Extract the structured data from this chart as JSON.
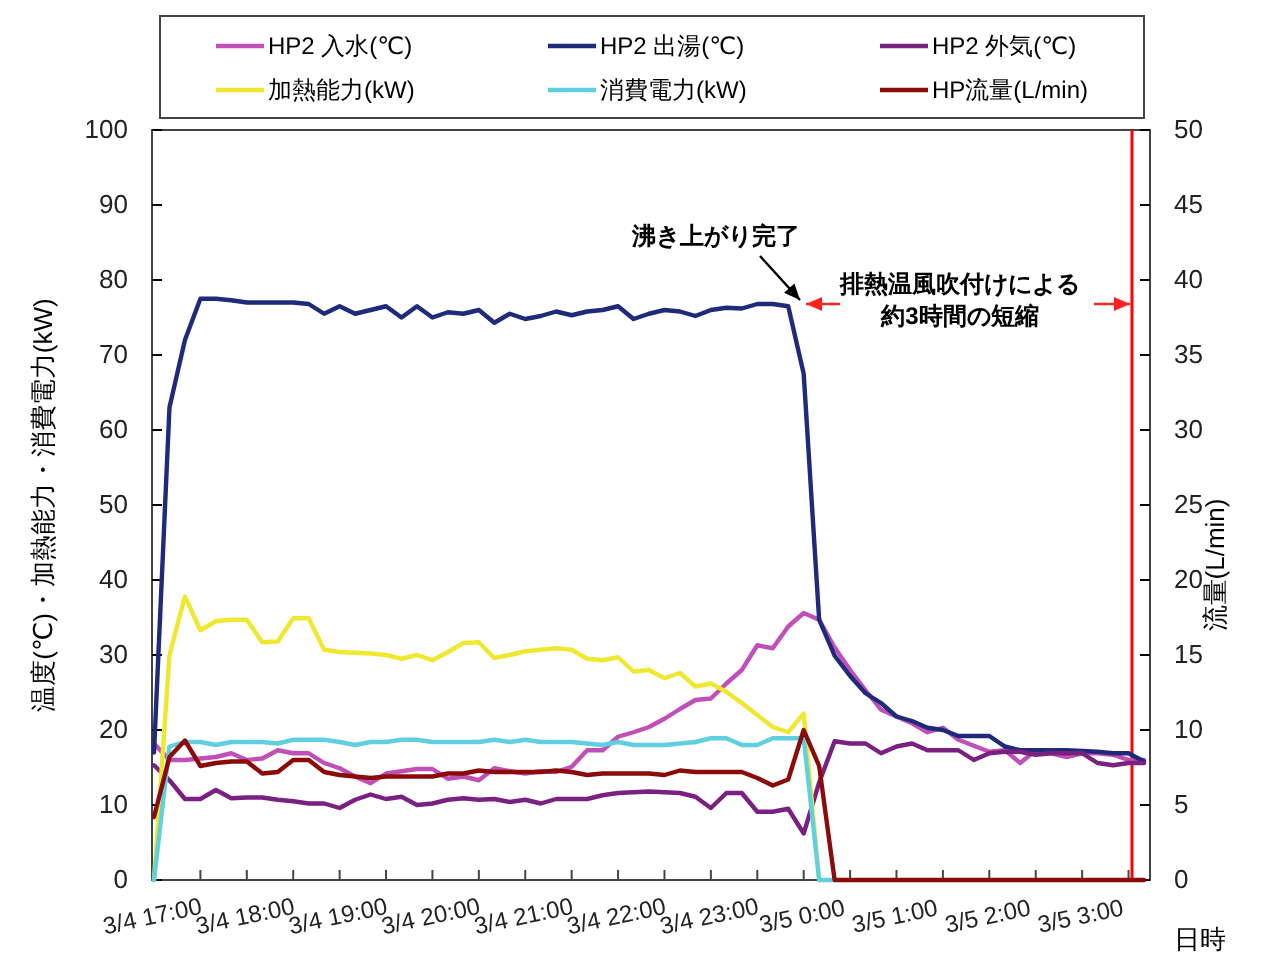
{
  "chart_data": {
    "type": "line",
    "categories": [
      "3/4 17:00",
      null,
      null,
      null,
      null,
      null,
      "3/4 18:00",
      null,
      null,
      null,
      null,
      null,
      "3/4 19:00",
      null,
      null,
      null,
      null,
      null,
      "3/4 20:00",
      null,
      null,
      null,
      null,
      null,
      "3/4 21:00",
      null,
      null,
      null,
      null,
      null,
      "3/4 22:00",
      null,
      null,
      null,
      null,
      null,
      "3/4 23:00",
      null,
      null,
      null,
      null,
      null,
      "3/5 0:00",
      null,
      null,
      null,
      null,
      null,
      "3/5 1:00",
      null,
      null,
      null,
      null,
      null,
      "3/5 2:00",
      null,
      null,
      null,
      null,
      null,
      "3/5 3:00",
      null,
      null,
      null,
      null
    ],
    "series": [
      {
        "name": "HP2 入水(℃)",
        "color": "#c050b8",
        "values": [
          18.2,
          16,
          16,
          16.2,
          16.4,
          16.9,
          16,
          16.2,
          17.3,
          16.9,
          16.9,
          15.6,
          14.9,
          13.8,
          12.9,
          14.2,
          14.5,
          14.8,
          14.8,
          13.5,
          13.8,
          13.3,
          14.9,
          14.5,
          14.2,
          14.5,
          14.4,
          15.1,
          17.3,
          17.3,
          19.1,
          19.7,
          20.4,
          21.5,
          22.8,
          24,
          24.2,
          26.2,
          28,
          31.3,
          30.9,
          33.8,
          35.6,
          34.7,
          31,
          28,
          25.3,
          22.7,
          21.8,
          20.9,
          19.7,
          20.3,
          18.7,
          17.9,
          17.1,
          17.3,
          15.6,
          17.3,
          16.9,
          16.4,
          16.9,
          16.9,
          16.7,
          16,
          16
        ]
      },
      {
        "name": "HP2 出湯(℃)",
        "color": "#1f2a7a",
        "values": [
          17,
          63,
          72,
          77.5,
          77.5,
          77.3,
          77,
          77,
          77,
          77,
          76.8,
          75.5,
          76.5,
          75.5,
          76,
          76.5,
          75,
          76.5,
          75,
          75.7,
          75.5,
          76,
          74.3,
          75.5,
          74.8,
          75.2,
          75.8,
          75.3,
          75.8,
          76,
          76.5,
          74.8,
          75.5,
          76,
          75.8,
          75.2,
          76,
          76.3,
          76.2,
          76.8,
          76.8,
          76.5,
          67.5,
          34.7,
          29.9,
          27.2,
          24.9,
          23.6,
          21.8,
          21.2,
          20.3,
          20,
          19.2,
          19.2,
          19.2,
          17.8,
          17.3,
          17.3,
          17.3,
          17.3,
          17.2,
          17.1,
          16.9,
          16.9,
          15.8
        ]
      },
      {
        "name": "HP2 外気(℃)",
        "color": "#7a2080",
        "values": [
          15.3,
          13.3,
          10.8,
          10.8,
          12,
          10.9,
          11,
          11,
          10.7,
          10.5,
          10.2,
          10.2,
          9.6,
          10.7,
          11.4,
          10.8,
          11.1,
          10,
          10.2,
          10.7,
          10.9,
          10.7,
          10.8,
          10.4,
          10.7,
          10.2,
          10.8,
          10.8,
          10.8,
          11.3,
          11.6,
          11.7,
          11.8,
          11.7,
          11.6,
          11.1,
          9.6,
          11.6,
          11.6,
          9.1,
          9.1,
          9.5,
          6.2,
          13,
          18.5,
          18.2,
          18.2,
          16.9,
          17.8,
          18.2,
          17.3,
          17.3,
          17.3,
          16,
          16.9,
          17.1,
          17.1,
          16.7,
          16.9,
          16.9,
          16.9,
          15.6,
          15.3,
          15.6,
          15.6
        ]
      },
      {
        "name": "加熱能力(kW)",
        "color": "#f0e830",
        "values": [
          0,
          30,
          37.8,
          33.3,
          34.5,
          34.7,
          34.7,
          31.7,
          31.8,
          34.9,
          34.9,
          30.7,
          30.4,
          30.3,
          30.2,
          30,
          29.5,
          30,
          29.3,
          30.4,
          31.6,
          31.7,
          29.6,
          30,
          30.5,
          30.7,
          30.9,
          30.7,
          29.5,
          29.3,
          29.7,
          27.8,
          28,
          26.9,
          27.6,
          25.8,
          26.2,
          25.1,
          23.6,
          22,
          20.4,
          19.7,
          22.2,
          0,
          null,
          null,
          null,
          null,
          null,
          null,
          null,
          null,
          null,
          null,
          null,
          null,
          null,
          null,
          null,
          null,
          null,
          null,
          null,
          null,
          null
        ]
      },
      {
        "name": "消費電力(kW)",
        "color": "#60d0e0",
        "values": [
          0,
          17.8,
          18.4,
          18.4,
          18,
          18.4,
          18.4,
          18.4,
          18.2,
          18.7,
          18.7,
          18.7,
          18.4,
          18,
          18.4,
          18.4,
          18.7,
          18.7,
          18.4,
          18.4,
          18.4,
          18.4,
          18.7,
          18.4,
          18.7,
          18.4,
          18.4,
          18.4,
          18.2,
          18,
          18.4,
          18,
          18,
          18,
          18.2,
          18.4,
          18.9,
          18.9,
          18,
          18,
          18.9,
          18.9,
          18.9,
          0,
          0,
          null,
          null,
          null,
          null,
          null,
          null,
          null,
          null,
          null,
          null,
          null,
          null,
          null,
          null,
          null,
          null,
          null,
          null,
          null,
          null
        ]
      },
      {
        "name": "HP流量(L/min)",
        "color": "#8b0a0a",
        "axis": "y2",
        "values": [
          4.2,
          8.2,
          9.3,
          7.6,
          7.8,
          7.9,
          7.9,
          7.1,
          7.2,
          8,
          8,
          7.2,
          7,
          6.9,
          6.8,
          6.9,
          6.9,
          6.9,
          6.9,
          7.1,
          7.1,
          7.3,
          7.2,
          7.2,
          7.2,
          7.2,
          7.3,
          7.2,
          7,
          7.1,
          7.1,
          7.1,
          7.1,
          7,
          7.3,
          7.2,
          7.2,
          7.2,
          7.2,
          6.8,
          6.3,
          6.7,
          10,
          7.6,
          0,
          0,
          0,
          0,
          0,
          0,
          0,
          0,
          0,
          0,
          0,
          0,
          0,
          0,
          0,
          0,
          0,
          0,
          0,
          0,
          0
        ]
      }
    ],
    "xlabel": "日時",
    "ylabel": "温度(℃)・加熱能力・消費電力(kW)",
    "y2label": "流量(L/min)",
    "ylim": [
      0,
      100
    ],
    "yticks": [
      0,
      10,
      20,
      30,
      40,
      50,
      60,
      70,
      80,
      90,
      100
    ],
    "y2lim": [
      0,
      50
    ],
    "y2ticks": [
      0,
      5,
      10,
      15,
      20,
      25,
      30,
      35,
      40,
      45,
      50
    ],
    "annotations": [
      "沸き上がり完了",
      "排熱温風吹付けによる約3時間の短縮"
    ],
    "legend": "top",
    "grid": false,
    "marker": "none",
    "line_style": "solid"
  }
}
